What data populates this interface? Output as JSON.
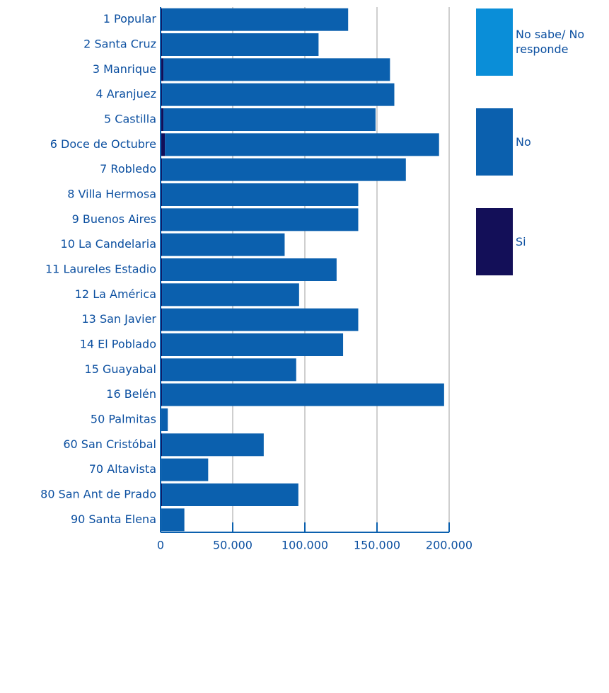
{
  "chart_data": {
    "type": "bar",
    "orientation": "horizontal",
    "stacked": true,
    "categories": [
      "1 Popular",
      "2 Santa Cruz",
      "3 Manrique",
      "4 Aranjuez",
      "5 Castilla",
      "6 Doce de Octubre",
      "7 Robledo",
      "8 Villa Hermosa",
      "9 Buenos Aires",
      "10 La Candelaria",
      "11 Laureles Estadio",
      "12 La América",
      "13 San Javier",
      "14 El Poblado",
      "15 Guayabal",
      "16 Belén",
      "50 Palmitas",
      "60 San Cristóbal",
      "70 Altavista",
      "80 San Ant de Prado",
      "90 Santa Elena"
    ],
    "series": [
      {
        "name": "No sabe/ No responde",
        "color": "#0a8ed8",
        "values": [
          0,
          0,
          0,
          0,
          0,
          0,
          0,
          0,
          0,
          0,
          0,
          0,
          0,
          0,
          0,
          0,
          0,
          0,
          0,
          0,
          0
        ]
      },
      {
        "name": "No",
        "color": "#0b60ae",
        "values": [
          129000,
          108500,
          157000,
          161000,
          147000,
          190000,
          169000,
          136000,
          136000,
          85000,
          121000,
          95000,
          136000,
          125500,
          93000,
          195500,
          4500,
          70500,
          32500,
          94500,
          16000
        ]
      },
      {
        "name": "Si",
        "color": "#130f58",
        "values": [
          1000,
          1000,
          2000,
          1000,
          2000,
          3000,
          1000,
          1000,
          1000,
          1000,
          1000,
          1000,
          1000,
          1000,
          1000,
          1000,
          500,
          1000,
          500,
          1000,
          500
        ]
      }
    ],
    "xlim": [
      0,
      200000
    ],
    "xticks": [
      0,
      {
        "value": 50000,
        "label": "50.000"
      },
      {
        "value": 100000,
        "label": "100.000"
      },
      {
        "value": 150000,
        "label": "150.000"
      },
      {
        "value": 200000,
        "label": "200.000"
      }
    ],
    "grid": true
  }
}
